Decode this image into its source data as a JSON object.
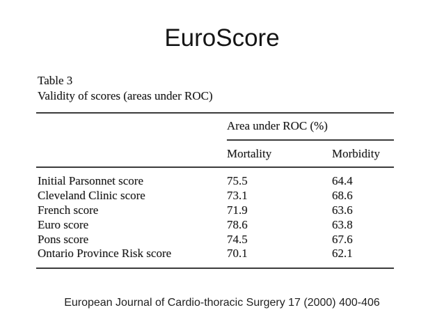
{
  "slide": {
    "title": "EuroScore",
    "citation": "European Journal of Cardio-thoracic Surgery 17 (2000) 400-406"
  },
  "table": {
    "caption_number": "Table 3",
    "caption_title": "Validity of scores (areas under ROC)",
    "group_header": "Area under ROC (%)",
    "col_headers": [
      "Mortality",
      "Morbidity"
    ],
    "rows": [
      {
        "label": "Initial Parsonnet score",
        "mortality": "75.5",
        "morbidity": "64.4"
      },
      {
        "label": "Cleveland Clinic score",
        "mortality": "73.1",
        "morbidity": "68.6"
      },
      {
        "label": "French score",
        "mortality": "71.9",
        "morbidity": "63.6"
      },
      {
        "label": "Euro score",
        "mortality": "78.6",
        "morbidity": "63.8"
      },
      {
        "label": "Pons score",
        "mortality": "74.5",
        "morbidity": "67.6"
      },
      {
        "label": "Ontario Province Risk score",
        "mortality": "70.1",
        "morbidity": "62.1"
      }
    ]
  },
  "colors": {
    "background": "#ffffff",
    "text": "#1a1a1a",
    "rule": "#3d3d3d"
  }
}
